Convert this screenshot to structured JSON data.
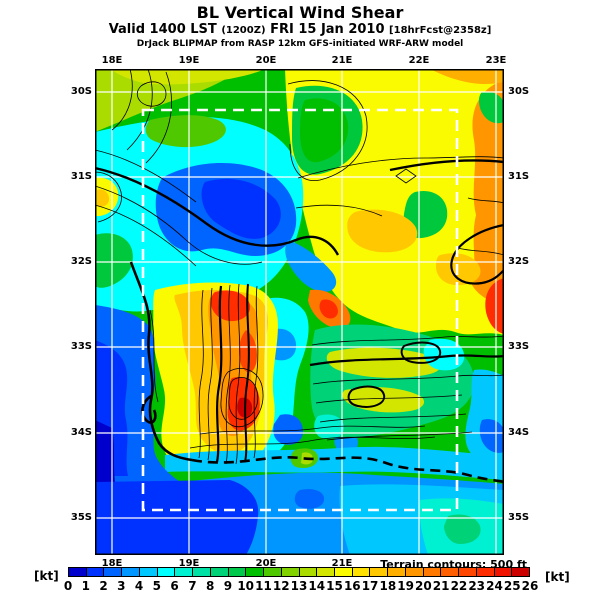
{
  "header": {
    "title": "BL Vertical Wind Shear",
    "valid_prefix": "Valid 1400 LST ",
    "valid_z": "(1200Z)",
    "valid_date": " FRI 15 Jan 2010 ",
    "valid_fcst": "[18hrFcst@2358z]",
    "model_line": "DrJack BLIPMAP from RASP 12km GFS-initiated WRF-ARW model"
  },
  "map": {
    "top_lon_labels": [
      "18E",
      "19E",
      "20E",
      "21E",
      "22E",
      "23E"
    ],
    "bottom_lon_labels": [
      "18E",
      "19E",
      "20E",
      "21E"
    ],
    "left_lat_labels": [
      "30S",
      "31S",
      "32S",
      "33S",
      "34S",
      "35S"
    ],
    "right_lat_labels": [
      "30S",
      "31S",
      "32S",
      "33S",
      "34S",
      "35S"
    ],
    "terrain_note": "Terrain contours: 500 ft"
  },
  "legend": {
    "unit_left": "[kt]",
    "unit_right": "[kt]",
    "tick_labels": [
      "0",
      "1",
      "2",
      "3",
      "4",
      "5",
      "6",
      "7",
      "8",
      "9",
      "10",
      "11",
      "12",
      "13",
      "14",
      "15",
      "16",
      "17",
      "18",
      "19",
      "20",
      "21",
      "22",
      "23",
      "24",
      "25",
      "26"
    ],
    "cell_colors": [
      "#0000cd",
      "#0032ff",
      "#0064ff",
      "#0096ff",
      "#00c8ff",
      "#00ffff",
      "#00f0d2",
      "#00e1a5",
      "#00d278",
      "#00c84b",
      "#00be00",
      "#50c800",
      "#82d200",
      "#aadc00",
      "#d2e600",
      "#fafa00",
      "#ffe100",
      "#ffc800",
      "#ffaf00",
      "#ff9600",
      "#ff7800",
      "#ff5f00",
      "#ff4600",
      "#ff2d00",
      "#f01400",
      "#cd0000"
    ]
  },
  "chart_data": {
    "type": "heatmap",
    "title": "BL Vertical Wind Shear",
    "valid": "Valid 1400 LST (1200Z) FRI 15 Jan 2010 [18hrFcst@2358z]",
    "source_note": "DrJack BLIPMAP from RASP 12km GFS-initiated WRF-ARW model",
    "units": "kt",
    "x_axis": {
      "ticks": [
        "18E",
        "19E",
        "20E",
        "21E",
        "22E",
        "23E"
      ],
      "range": [
        "18E",
        "23E"
      ],
      "grid": "white solid lines"
    },
    "y_axis": {
      "ticks": [
        "30S",
        "31S",
        "32S",
        "33S",
        "34S",
        "35S"
      ],
      "range": [
        "30S",
        "35S"
      ],
      "grid": "white solid lines"
    },
    "colorbar": {
      "min": 0,
      "max": 26,
      "step": 1,
      "unit": "kt",
      "colors": [
        "#0000cd",
        "#0032ff",
        "#0064ff",
        "#0096ff",
        "#00c8ff",
        "#00ffff",
        "#00f0d2",
        "#00e1a5",
        "#00d278",
        "#00c84b",
        "#00be00",
        "#50c800",
        "#82d200",
        "#aadc00",
        "#d2e600",
        "#fafa00",
        "#ffe100",
        "#ffc800",
        "#ffaf00",
        "#ff9600",
        "#ff7800",
        "#ff5f00",
        "#ff4600",
        "#ff2d00",
        "#f01400",
        "#cd0000"
      ]
    },
    "overlays": [
      "terrain contours every 500 ft (black lines)",
      "latitude/longitude grid (white lines)",
      "inner model domain box (white dashed rectangle ~18.6E-22.6E, 30.5S-34.9S)",
      "coastline of Western Cape South Africa (thick black, partly dashed)"
    ],
    "notable_regions": [
      {
        "region": "upper-left interior (~19E-20.5E, 31S-31.8S)",
        "value_kt": "2-5",
        "appearance": "blue low-shear pool"
      },
      {
        "region": "northeast quadrant (20E-23E, 30S-32S)",
        "value_kt": "14-19",
        "appearance": "yellow-orange with green patches"
      },
      {
        "region": "east edge (~23E, 32.3S)",
        "value_kt": "22-24",
        "appearance": "red maximum streak"
      },
      {
        "region": "central Cape fold mountains (19.3E-20.3E, 32.5S-34S)",
        "value_kt": "16-25",
        "appearance": "orange band with red cores and dense terrain contours"
      },
      {
        "region": "west & south coastal ocean",
        "value_kt": "0-5",
        "appearance": "dark blue to cyan"
      },
      {
        "region": "southeast interior (20.5E-22.5E, 33S-34S)",
        "value_kt": "6-14",
        "appearance": "green with yellow streaks and cyan patches"
      }
    ]
  }
}
